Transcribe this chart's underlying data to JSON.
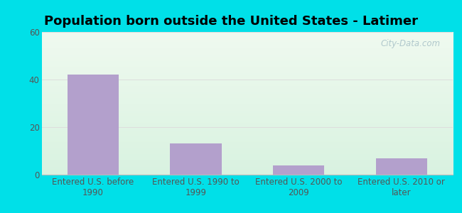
{
  "title": "Population born outside the United States - Latimer",
  "categories": [
    "Entered U.S. before\n1990",
    "Entered U.S. 1990 to\n1999",
    "Entered U.S. 2000 to\n2009",
    "Entered U.S. 2010 or\nlater"
  ],
  "values": [
    42,
    13,
    4,
    7
  ],
  "bar_color": "#b3a0cc",
  "ylim": [
    0,
    60
  ],
  "yticks": [
    0,
    20,
    40,
    60
  ],
  "background_outer": "#00e0e8",
  "grid_color": "#dddddd",
  "title_fontsize": 13,
  "tick_fontsize": 8.5,
  "watermark_text": "City-Data.com",
  "watermark_color": "#b0c8cc",
  "bg_top_left": "#e8f7ee",
  "bg_bottom_right": "#d4ede0"
}
